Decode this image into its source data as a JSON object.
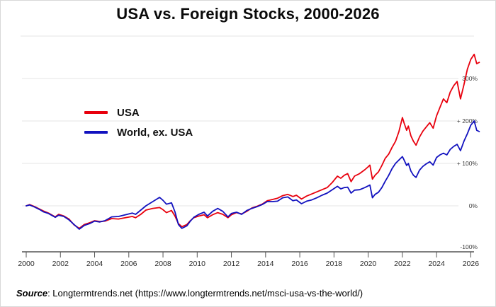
{
  "header": {
    "title": "USA vs. Foreign Stocks, 2000-2026"
  },
  "chart_data": {
    "type": "line",
    "title": "USA vs. Foreign Stocks, 2000-2026",
    "xlabel": "",
    "ylabel": "",
    "xlim": [
      1999.7,
      2026.8
    ],
    "ylim_percent": [
      -100,
      400
    ],
    "grid": true,
    "legend_position": "top-left-inside",
    "x_ticks": [
      2000,
      2002,
      2004,
      2006,
      2008,
      2010,
      2012,
      2014,
      2016,
      2018,
      2020,
      2022,
      2024,
      2026
    ],
    "y_ticks": [
      {
        "label": "300%",
        "value": 300,
        "gridline": true
      },
      {
        "label": "+ 200%",
        "value": 200,
        "gridline": true
      },
      {
        "label": "+ 100%",
        "value": 100,
        "gridline": true
      },
      {
        "label": "0%",
        "value": 0,
        "gridline": true
      },
      {
        "label": "-100%",
        "value": -100,
        "gridline": false
      }
    ],
    "x": [
      2000.0,
      2000.2,
      2000.5,
      2000.8,
      2001.0,
      2001.3,
      2001.7,
      2001.9,
      2002.2,
      2002.5,
      2002.8,
      2003.1,
      2003.4,
      2003.7,
      2004.0,
      2004.3,
      2004.6,
      2005.0,
      2005.4,
      2005.8,
      2006.2,
      2006.4,
      2006.7,
      2007.0,
      2007.4,
      2007.8,
      2008.0,
      2008.2,
      2008.5,
      2008.7,
      2008.9,
      2009.1,
      2009.4,
      2009.6,
      2009.8,
      2010.1,
      2010.4,
      2010.6,
      2010.9,
      2011.2,
      2011.5,
      2011.8,
      2012.0,
      2012.3,
      2012.6,
      2012.9,
      2013.2,
      2013.5,
      2013.8,
      2014.1,
      2014.4,
      2014.7,
      2015.0,
      2015.3,
      2015.6,
      2015.8,
      2016.1,
      2016.4,
      2016.7,
      2017.0,
      2017.3,
      2017.6,
      2017.9,
      2018.2,
      2018.4,
      2018.6,
      2018.8,
      2019.0,
      2019.2,
      2019.5,
      2019.8,
      2020.0,
      2020.1,
      2020.25,
      2020.4,
      2020.6,
      2020.8,
      2021.0,
      2021.2,
      2021.4,
      2021.6,
      2021.8,
      2022.0,
      2022.1,
      2022.25,
      2022.35,
      2022.5,
      2022.65,
      2022.8,
      2023.0,
      2023.2,
      2023.4,
      2023.6,
      2023.8,
      2024.0,
      2024.2,
      2024.4,
      2024.6,
      2024.8,
      2025.0,
      2025.2,
      2025.4,
      2025.6,
      2025.8,
      2026.0,
      2026.2,
      2026.35,
      2026.5
    ],
    "series": [
      {
        "name": "USA",
        "color": "#e8000d",
        "values_percent": [
          0,
          3,
          -2,
          -8,
          -12,
          -17,
          -26,
          -20,
          -24,
          -31,
          -45,
          -53,
          -44,
          -40,
          -35,
          -37,
          -36,
          -30,
          -31,
          -28,
          -25,
          -28,
          -20,
          -10,
          -6,
          -4,
          -9,
          -16,
          -11,
          -24,
          -42,
          -49,
          -44,
          -35,
          -28,
          -24,
          -21,
          -28,
          -21,
          -16,
          -20,
          -28,
          -21,
          -16,
          -19,
          -13,
          -5,
          -1,
          4,
          12,
          15,
          18,
          24,
          27,
          22,
          25,
          16,
          23,
          28,
          33,
          38,
          43,
          55,
          70,
          65,
          72,
          76,
          57,
          70,
          76,
          85,
          92,
          96,
          63,
          72,
          80,
          95,
          112,
          122,
          138,
          152,
          175,
          208,
          195,
          178,
          188,
          165,
          152,
          143,
          162,
          176,
          186,
          196,
          183,
          212,
          232,
          252,
          243,
          268,
          283,
          293,
          252,
          285,
          322,
          345,
          357,
          335,
          338
        ]
      },
      {
        "name": "World, ex. USA",
        "color": "#1212bf",
        "values_percent": [
          0,
          2,
          -3,
          -9,
          -14,
          -18,
          -27,
          -22,
          -25,
          -33,
          -44,
          -55,
          -46,
          -42,
          -36,
          -38,
          -35,
          -26,
          -25,
          -21,
          -17,
          -20,
          -10,
          0,
          10,
          20,
          13,
          4,
          7,
          -14,
          -44,
          -53,
          -47,
          -36,
          -27,
          -20,
          -15,
          -24,
          -13,
          -6,
          -13,
          -26,
          -18,
          -15,
          -20,
          -11,
          -6,
          -2,
          3,
          10,
          10,
          11,
          19,
          21,
          12,
          14,
          5,
          11,
          14,
          19,
          25,
          30,
          38,
          46,
          40,
          43,
          44,
          30,
          37,
          38,
          43,
          47,
          49,
          19,
          27,
          32,
          43,
          58,
          72,
          88,
          100,
          108,
          116,
          108,
          95,
          100,
          82,
          72,
          67,
          84,
          93,
          99,
          104,
          96,
          114,
          120,
          124,
          120,
          133,
          140,
          145,
          130,
          152,
          170,
          190,
          200,
          178,
          175
        ]
      }
    ]
  },
  "footer": {
    "source_label": "Source",
    "source_text": ": Longtermtrends.net (https://www.longtermtrends.net/msci-usa-vs-the-world/)"
  }
}
